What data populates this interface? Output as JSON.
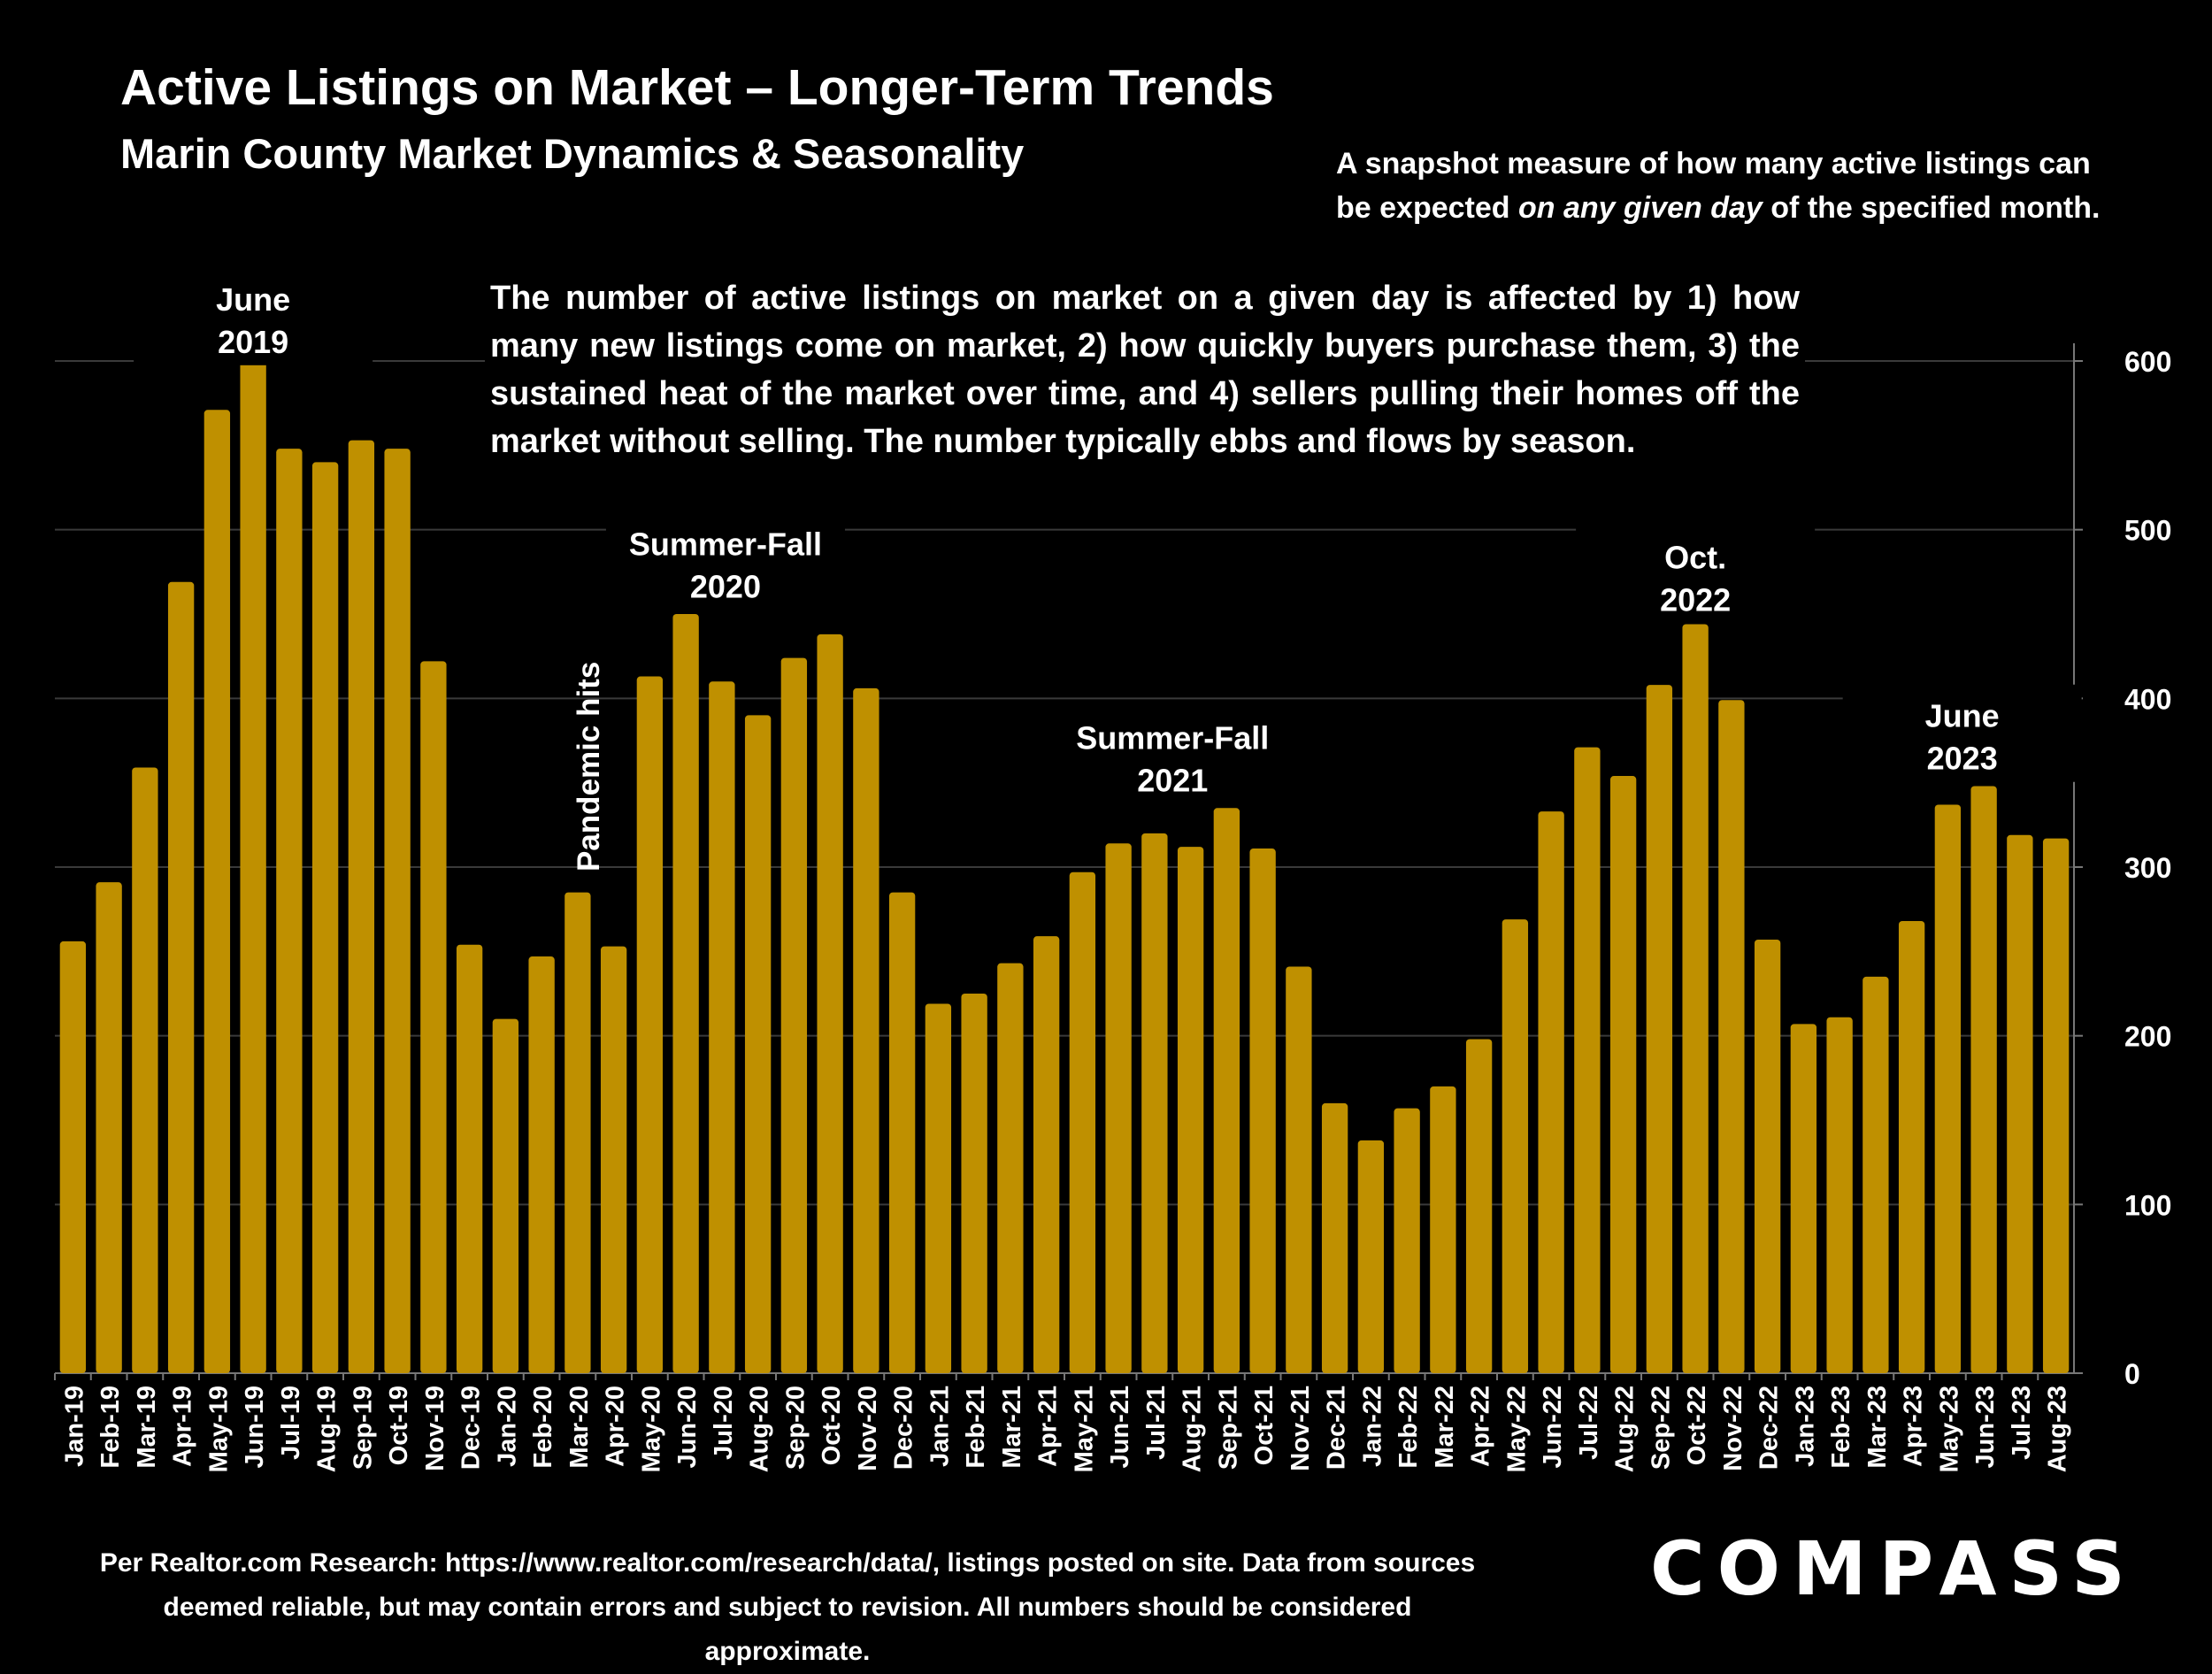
{
  "header": {
    "title": "Active Listings on Market – Longer-Term Trends",
    "subtitle": "Marin County Market Dynamics & Seasonality",
    "snapshot_prefix": "A snapshot measure of how many active listings can be expected ",
    "snapshot_emphasis": "on any given day",
    "snapshot_suffix": " of the specified month."
  },
  "description": "The number of active listings on market on a given day is affected by 1) how many new listings come on market, 2) how quickly buyers purchase them, 3) the sustained heat of the market over time, and 4) sellers pulling their homes off the market without selling. The number typically ebbs and flows by season.",
  "footer": {
    "source_line1": "Per Realtor.com Research:  https://www.realtor.com/research/data/, listings posted on site. Data from sources",
    "source_line2": "deemed reliable, but may contain errors and subject to revision. All numbers should be considered approximate.",
    "logo": "COMPASS"
  },
  "chart_data": {
    "type": "bar",
    "categories": [
      "Jan-19",
      "Feb-19",
      "Mar-19",
      "Apr-19",
      "May-19",
      "Jun-19",
      "Jul-19",
      "Aug-19",
      "Sep-19",
      "Oct-19",
      "Nov-19",
      "Dec-19",
      "Jan-20",
      "Feb-20",
      "Mar-20",
      "Apr-20",
      "May-20",
      "Jun-20",
      "Jul-20",
      "Aug-20",
      "Sep-20",
      "Oct-20",
      "Nov-20",
      "Dec-20",
      "Jan-21",
      "Feb-21",
      "Mar-21",
      "Apr-21",
      "May-21",
      "Jun-21",
      "Jul-21",
      "Aug-21",
      "Sep-21",
      "Oct-21",
      "Nov-21",
      "Dec-21",
      "Jan-22",
      "Feb-22",
      "Mar-22",
      "Apr-22",
      "May-22",
      "Jun-22",
      "Jul-22",
      "Aug-22",
      "Sep-22",
      "Oct-22",
      "Nov-22",
      "Dec-22",
      "Jan-23",
      "Feb-23",
      "Mar-23",
      "Apr-23",
      "May-23",
      "Jun-23",
      "Jul-23",
      "Aug-23"
    ],
    "values": [
      256,
      291,
      359,
      469,
      571,
      600,
      548,
      540,
      553,
      548,
      422,
      254,
      210,
      247,
      285,
      253,
      413,
      450,
      410,
      390,
      424,
      438,
      406,
      285,
      219,
      225,
      243,
      259,
      297,
      314,
      320,
      312,
      335,
      311,
      241,
      160,
      138,
      157,
      170,
      198,
      269,
      333,
      371,
      354,
      408,
      444,
      399,
      257,
      207,
      211,
      235,
      268,
      337,
      348,
      319,
      317
    ],
    "ylim": [
      0,
      600
    ],
    "yticks": [
      0,
      100,
      200,
      300,
      400,
      500,
      600
    ],
    "grid": true,
    "color": "#bf9000",
    "annotations": [
      {
        "lines": [
          "June",
          "2019"
        ],
        "index": 5.5,
        "value": 630
      },
      {
        "lines": [
          "Summer-Fall",
          "2020"
        ],
        "index": 18.6,
        "value": 485
      },
      {
        "lines": [
          "Pandemic hits"
        ],
        "index": 14.3,
        "value": 520,
        "rotated": true
      },
      {
        "lines": [
          "Summer-Fall",
          "2021"
        ],
        "index": 31.0,
        "value": 370
      },
      {
        "lines": [
          "Oct.",
          "2022"
        ],
        "index": 45.5,
        "value": 477
      },
      {
        "lines": [
          "June",
          "2023"
        ],
        "index": 52.9,
        "value": 383
      }
    ]
  }
}
